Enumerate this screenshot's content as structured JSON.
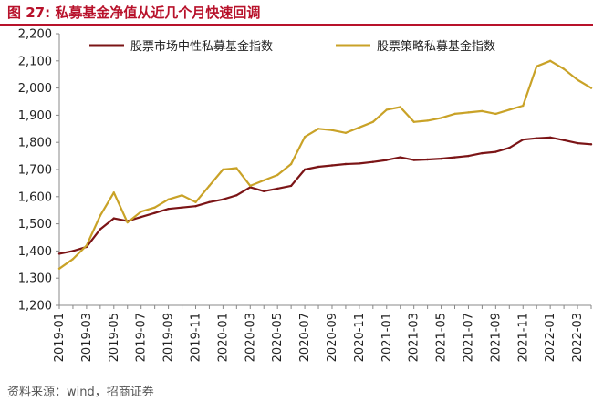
{
  "figure": {
    "title": "图 27:  私募基金净值从近几个月快速回调",
    "source": "资料来源：wind，招商证券"
  },
  "colors": {
    "title": "#b8122b",
    "series_1": "#7b1416",
    "series_2": "#c9a227",
    "axis": "#888888"
  },
  "chart_data": {
    "type": "line",
    "title": "",
    "xlabel": "",
    "ylabel": "",
    "ylim": [
      1200,
      2200
    ],
    "y_ticks": [
      "1,200",
      "1,300",
      "1,400",
      "1,500",
      "1,600",
      "1,700",
      "1,800",
      "1,900",
      "2,000",
      "2,100",
      "2,200"
    ],
    "x_ticks": [
      "2019-01",
      "2019-03",
      "2019-05",
      "2019-07",
      "2019-09",
      "2019-11",
      "2020-01",
      "2020-03",
      "2020-05",
      "2020-07",
      "2020-09",
      "2020-11",
      "2021-01",
      "2021-03",
      "2021-05",
      "2021-07",
      "2021-09",
      "2021-11",
      "2022-01",
      "2022-03"
    ],
    "x_range": [
      "2019-01",
      "2022-04"
    ],
    "grid": false,
    "legend_position": "top",
    "series": [
      {
        "name": "股票市场中性私募基金指数",
        "points": [
          [
            "2019-01",
            1390
          ],
          [
            "2019-02",
            1400
          ],
          [
            "2019-03",
            1415
          ],
          [
            "2019-04",
            1480
          ],
          [
            "2019-05",
            1520
          ],
          [
            "2019-06",
            1510
          ],
          [
            "2019-07",
            1525
          ],
          [
            "2019-08",
            1540
          ],
          [
            "2019-09",
            1555
          ],
          [
            "2019-10",
            1560
          ],
          [
            "2019-11",
            1565
          ],
          [
            "2019-12",
            1580
          ],
          [
            "2020-01",
            1590
          ],
          [
            "2020-02",
            1605
          ],
          [
            "2020-03",
            1635
          ],
          [
            "2020-04",
            1620
          ],
          [
            "2020-05",
            1630
          ],
          [
            "2020-06",
            1640
          ],
          [
            "2020-07",
            1700
          ],
          [
            "2020-08",
            1710
          ],
          [
            "2020-09",
            1715
          ],
          [
            "2020-10",
            1720
          ],
          [
            "2020-11",
            1722
          ],
          [
            "2020-12",
            1728
          ],
          [
            "2021-01",
            1735
          ],
          [
            "2021-02",
            1745
          ],
          [
            "2021-03",
            1735
          ],
          [
            "2021-04",
            1737
          ],
          [
            "2021-05",
            1740
          ],
          [
            "2021-06",
            1745
          ],
          [
            "2021-07",
            1750
          ],
          [
            "2021-08",
            1760
          ],
          [
            "2021-09",
            1765
          ],
          [
            "2021-10",
            1780
          ],
          [
            "2021-11",
            1810
          ],
          [
            "2021-12",
            1815
          ],
          [
            "2022-01",
            1818
          ],
          [
            "2022-02",
            1808
          ],
          [
            "2022-03",
            1797
          ],
          [
            "2022-04",
            1793
          ]
        ]
      },
      {
        "name": "股票策略私募基金指数",
        "points": [
          [
            "2019-01",
            1335
          ],
          [
            "2019-02",
            1370
          ],
          [
            "2019-03",
            1420
          ],
          [
            "2019-04",
            1530
          ],
          [
            "2019-05",
            1615
          ],
          [
            "2019-06",
            1505
          ],
          [
            "2019-07",
            1545
          ],
          [
            "2019-08",
            1560
          ],
          [
            "2019-09",
            1590
          ],
          [
            "2019-10",
            1605
          ],
          [
            "2019-11",
            1580
          ],
          [
            "2019-12",
            1640
          ],
          [
            "2020-01",
            1700
          ],
          [
            "2020-02",
            1705
          ],
          [
            "2020-03",
            1640
          ],
          [
            "2020-04",
            1660
          ],
          [
            "2020-05",
            1680
          ],
          [
            "2020-06",
            1720
          ],
          [
            "2020-07",
            1820
          ],
          [
            "2020-08",
            1850
          ],
          [
            "2020-09",
            1845
          ],
          [
            "2020-10",
            1835
          ],
          [
            "2020-11",
            1855
          ],
          [
            "2020-12",
            1875
          ],
          [
            "2021-01",
            1920
          ],
          [
            "2021-02",
            1930
          ],
          [
            "2021-03",
            1875
          ],
          [
            "2021-04",
            1880
          ],
          [
            "2021-05",
            1890
          ],
          [
            "2021-06",
            1905
          ],
          [
            "2021-07",
            1910
          ],
          [
            "2021-08",
            1915
          ],
          [
            "2021-09",
            1905
          ],
          [
            "2021-10",
            1920
          ],
          [
            "2021-11",
            1935
          ],
          [
            "2021-12",
            2080
          ],
          [
            "2022-01",
            2100
          ],
          [
            "2022-02",
            2070
          ],
          [
            "2022-03",
            2030
          ],
          [
            "2022-04",
            2000
          ]
        ]
      }
    ]
  }
}
